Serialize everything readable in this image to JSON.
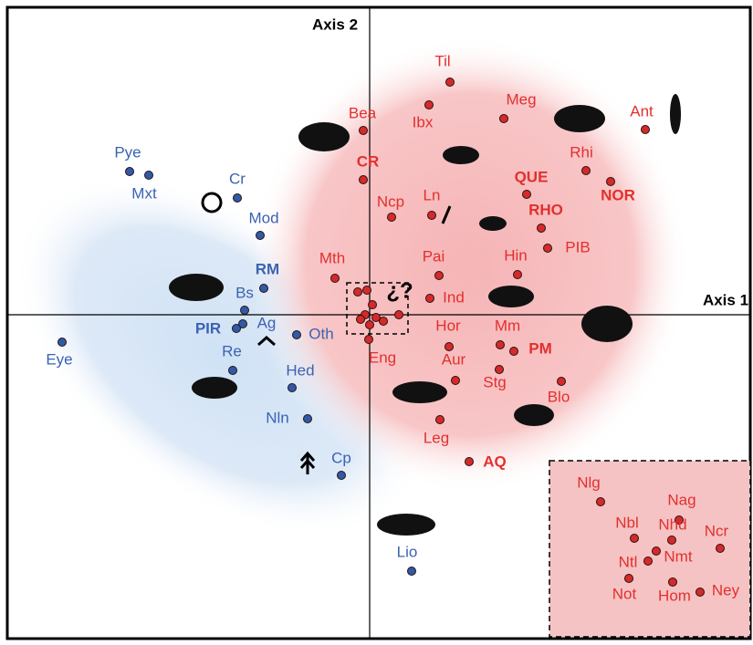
{
  "chart_data": [
    {
      "type": "scatter",
      "xlabel": "Axis 1",
      "ylabel": "Axis 2",
      "annotation": "¿?",
      "xlim": [
        -3.97,
        4.17
      ],
      "ylim": [
        -3.55,
        3.37
      ],
      "series": [
        {
          "color": "#d42a2a",
          "label_color": "#e2302e",
          "labels": [
            "Til",
            "Ibx",
            "Meg",
            "Ant",
            "Bea",
            "CR",
            "Rhi",
            "QUE",
            "NOR",
            "Ncp",
            "Ln",
            "RHO",
            "PIB",
            "Hin",
            "Pai",
            "Mth",
            "Ind",
            null,
            null,
            null,
            null,
            null,
            null,
            null,
            null,
            null,
            "Eng",
            "Hor",
            "Mm",
            "PM",
            "Aur",
            "Stg",
            "Blo",
            "Leg",
            "AQ"
          ],
          "bold": [
            false,
            false,
            false,
            false,
            false,
            true,
            false,
            true,
            true,
            false,
            false,
            true,
            false,
            false,
            false,
            false,
            false,
            false,
            false,
            false,
            false,
            false,
            false,
            false,
            false,
            false,
            false,
            false,
            false,
            true,
            false,
            false,
            false,
            false,
            true
          ],
          "x": [
            0.88,
            0.65,
            1.47,
            3.02,
            -0.07,
            -0.07,
            2.37,
            1.72,
            2.64,
            0.24,
            0.68,
            1.88,
            1.95,
            1.62,
            0.76,
            -0.38,
            0.66,
            -0.13,
            -0.03,
            0.03,
            -0.05,
            0.07,
            0.15,
            0,
            -0.1,
            0.32,
            -0.01,
            0.87,
            1.43,
            1.58,
            0.94,
            1.42,
            2.1,
            0.77,
            1.09
          ],
          "values": [
            2.55,
            2.3,
            2.15,
            2.03,
            2.02,
            1.48,
            1.58,
            1.32,
            1.46,
            1.07,
            1.09,
            0.95,
            0.73,
            0.44,
            0.43,
            0.4,
            0.18,
            0.25,
            0.27,
            0.11,
            0,
            -0.03,
            -0.07,
            -0.11,
            -0.05,
            0,
            -0.27,
            -0.35,
            -0.33,
            -0.4,
            -0.72,
            -0.6,
            -0.73,
            -1.15,
            -1.61
          ]
        },
        {
          "color": "#2f5aa8",
          "label_color": "#3b63b2",
          "labels": [
            "Pye",
            "Mxt",
            "Cr",
            "Mod",
            "RM",
            "Bs",
            "Ag",
            "PIR",
            "Oth",
            "Re",
            "Hed",
            "Eye",
            "Nln",
            "Cp",
            "Lio"
          ],
          "bold": [
            false,
            false,
            false,
            false,
            true,
            false,
            false,
            true,
            false,
            false,
            false,
            false,
            false,
            false,
            false
          ],
          "x": [
            -2.63,
            -2.42,
            -1.45,
            -1.2,
            -1.16,
            -1.37,
            -1.39,
            -1.46,
            -0.8,
            -1.5,
            -0.85,
            -3.37,
            -0.68,
            -0.31,
            0.46
          ],
          "values": [
            1.57,
            1.53,
            1.28,
            0.87,
            0.29,
            0.05,
            -0.1,
            -0.15,
            -0.22,
            -0.61,
            -0.8,
            -0.3,
            -1.14,
            -1.76,
            -2.81
          ]
        }
      ]
    },
    {
      "type": "scatter",
      "xlim": [
        -2.2,
        2.2
      ],
      "ylim": [
        -1.9,
        1.96
      ],
      "series": [
        {
          "color": "#d42a2a",
          "label_color": "#e2302e",
          "labels": [
            "Nlg",
            "Nag",
            "Nbl",
            "Nhd",
            "Ncr",
            "Nmt",
            "Ntl",
            "Not",
            "Hom",
            "Ney"
          ],
          "x": [
            -1.08,
            0.64,
            -0.34,
            0.48,
            1.54,
            0.14,
            -0.04,
            -0.46,
            0.5,
            1.1
          ],
          "values": [
            1.06,
            0.66,
            0.26,
            0.22,
            0.04,
            -0.02,
            -0.24,
            -0.62,
            -0.7,
            -0.92
          ]
        }
      ]
    }
  ]
}
